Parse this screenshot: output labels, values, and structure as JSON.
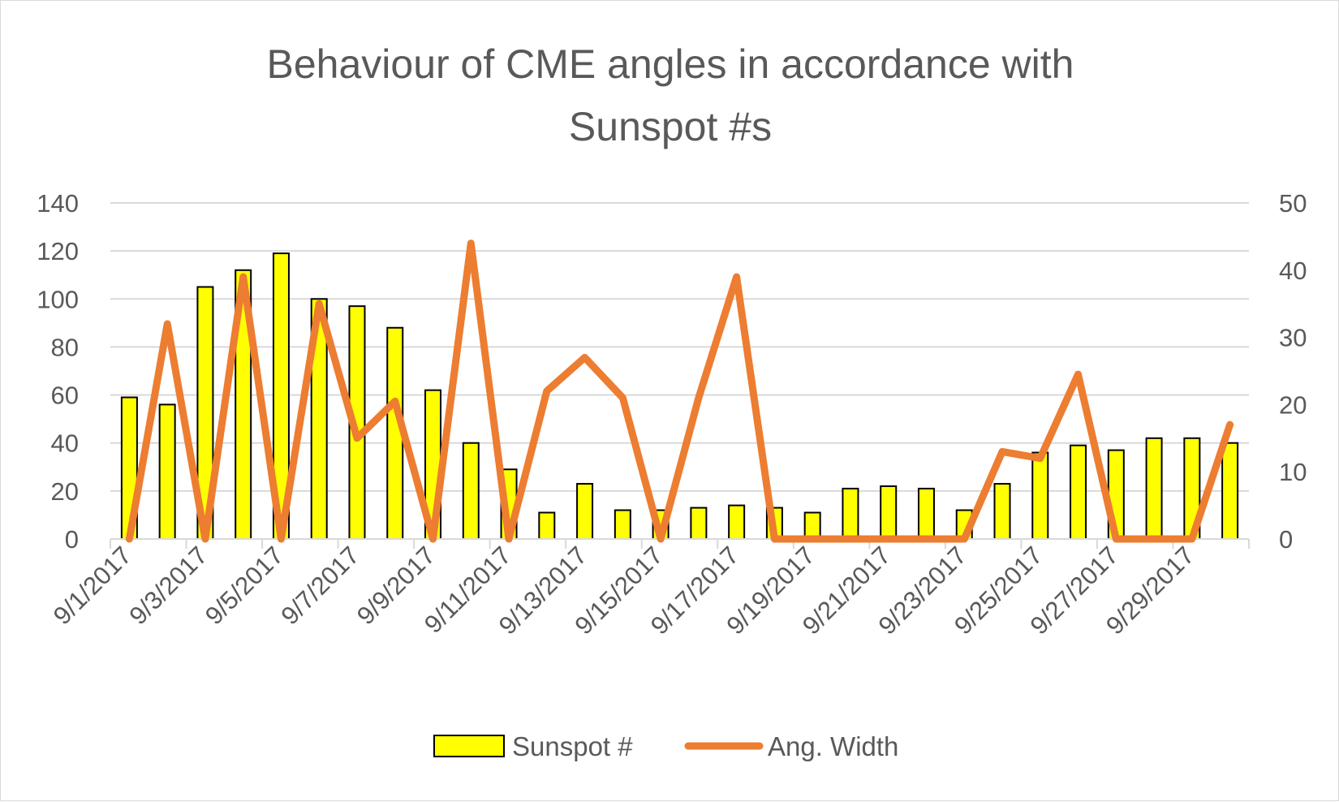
{
  "chart_data": {
    "type": "bar+line",
    "title_lines": [
      "Behaviour of CME angles in accordance with",
      "Sunspot #s"
    ],
    "categories": [
      "9/1/2017",
      "9/2/2017",
      "9/3/2017",
      "9/4/2017",
      "9/5/2017",
      "9/6/2017",
      "9/7/2017",
      "9/8/2017",
      "9/9/2017",
      "9/10/2017",
      "9/11/2017",
      "9/12/2017",
      "9/13/2017",
      "9/14/2017",
      "9/15/2017",
      "9/16/2017",
      "9/17/2017",
      "9/18/2017",
      "9/19/2017",
      "9/20/2017",
      "9/21/2017",
      "9/22/2017",
      "9/23/2017",
      "9/24/2017",
      "9/25/2017",
      "9/26/2017",
      "9/27/2017",
      "9/28/2017",
      "9/29/2017",
      "9/30/2017"
    ],
    "x_tick_labels": [
      "9/1/2017",
      "9/3/2017",
      "9/5/2017",
      "9/7/2017",
      "9/9/2017",
      "9/11/2017",
      "9/13/2017",
      "9/15/2017",
      "9/17/2017",
      "9/19/2017",
      "9/21/2017",
      "9/23/2017",
      "9/25/2017",
      "9/27/2017",
      "9/29/2017"
    ],
    "series": [
      {
        "name": "Sunspot #",
        "kind": "bar",
        "axis": "left",
        "color": "#ffff00",
        "edge_color": "#000000",
        "values": [
          59,
          56,
          105,
          112,
          119,
          100,
          97,
          88,
          62,
          40,
          29,
          11,
          23,
          12,
          12,
          13,
          14,
          13,
          11,
          21,
          22,
          21,
          12,
          23,
          36,
          39,
          37,
          42,
          42,
          40
        ]
      },
      {
        "name": "Ang. Width",
        "kind": "line",
        "axis": "right",
        "color": "#ed7d31",
        "values": [
          0,
          32,
          0,
          39,
          0,
          35,
          15,
          20.5,
          0,
          44,
          0,
          22,
          27,
          21,
          0,
          21,
          39,
          0,
          0,
          0,
          0,
          0,
          0,
          13,
          12,
          24.5,
          0,
          0,
          0,
          17
        ]
      }
    ],
    "y_left": {
      "min": 0,
      "max": 140,
      "ticks": [
        "0",
        "20",
        "40",
        "60",
        "80",
        "100",
        "120",
        "140"
      ]
    },
    "y_right": {
      "min": 0,
      "max": 50,
      "ticks": [
        "0",
        "10",
        "20",
        "30",
        "40",
        "50"
      ]
    },
    "grid": true,
    "gridline_color": "#d9d9d9",
    "legend_position": "bottom"
  }
}
